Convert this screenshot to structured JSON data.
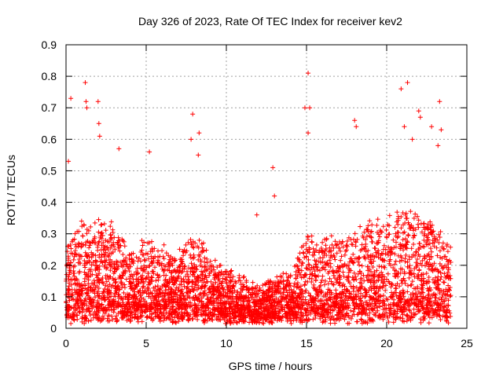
{
  "chart_data": {
    "type": "scatter",
    "title": "Day 326 of 2023, Rate Of TEC Index for receiver kev2",
    "xlabel": "GPS time / hours",
    "ylabel": "ROTI / TECUs",
    "xlim": [
      0,
      25
    ],
    "ylim": [
      0,
      0.9
    ],
    "xticks": [
      "0",
      "5",
      "10",
      "15",
      "20",
      "25"
    ],
    "yticks": [
      "0",
      "0.1",
      "0.2",
      "0.3",
      "0.4",
      "0.5",
      "0.6",
      "0.7",
      "0.8",
      "0.9"
    ],
    "grid": true,
    "marker": "plus",
    "color": "#ff0000",
    "outliers": [
      {
        "x": 0.3,
        "y": 0.73
      },
      {
        "x": 0.15,
        "y": 0.53
      },
      {
        "x": 1.2,
        "y": 0.78
      },
      {
        "x": 1.25,
        "y": 0.72
      },
      {
        "x": 1.3,
        "y": 0.7
      },
      {
        "x": 2.0,
        "y": 0.72
      },
      {
        "x": 2.05,
        "y": 0.65
      },
      {
        "x": 2.1,
        "y": 0.61
      },
      {
        "x": 3.3,
        "y": 0.57
      },
      {
        "x": 5.2,
        "y": 0.56
      },
      {
        "x": 7.9,
        "y": 0.68
      },
      {
        "x": 7.8,
        "y": 0.6
      },
      {
        "x": 8.3,
        "y": 0.62
      },
      {
        "x": 8.25,
        "y": 0.55
      },
      {
        "x": 12.9,
        "y": 0.51
      },
      {
        "x": 15.1,
        "y": 0.81
      },
      {
        "x": 14.9,
        "y": 0.7
      },
      {
        "x": 15.2,
        "y": 0.7
      },
      {
        "x": 15.1,
        "y": 0.62
      },
      {
        "x": 18.0,
        "y": 0.66
      },
      {
        "x": 18.1,
        "y": 0.64
      },
      {
        "x": 20.9,
        "y": 0.76
      },
      {
        "x": 21.3,
        "y": 0.78
      },
      {
        "x": 22.0,
        "y": 0.69
      },
      {
        "x": 22.1,
        "y": 0.67
      },
      {
        "x": 23.3,
        "y": 0.72
      },
      {
        "x": 23.4,
        "y": 0.63
      },
      {
        "x": 21.1,
        "y": 0.64
      },
      {
        "x": 21.6,
        "y": 0.6
      },
      {
        "x": 22.8,
        "y": 0.64
      },
      {
        "x": 23.2,
        "y": 0.58
      },
      {
        "x": 11.9,
        "y": 0.36
      },
      {
        "x": 13.0,
        "y": 0.42
      }
    ],
    "density_profile": [
      {
        "x": 0,
        "base": 0.06,
        "spread": 0.2
      },
      {
        "x": 1,
        "base": 0.07,
        "spread": 0.28
      },
      {
        "x": 2,
        "base": 0.07,
        "spread": 0.28
      },
      {
        "x": 3,
        "base": 0.07,
        "spread": 0.26
      },
      {
        "x": 4,
        "base": 0.06,
        "spread": 0.2
      },
      {
        "x": 5,
        "base": 0.06,
        "spread": 0.22
      },
      {
        "x": 6,
        "base": 0.06,
        "spread": 0.2
      },
      {
        "x": 7,
        "base": 0.05,
        "spread": 0.18
      },
      {
        "x": 8,
        "base": 0.06,
        "spread": 0.25
      },
      {
        "x": 9,
        "base": 0.05,
        "spread": 0.17
      },
      {
        "x": 10,
        "base": 0.04,
        "spread": 0.14
      },
      {
        "x": 11,
        "base": 0.04,
        "spread": 0.12
      },
      {
        "x": 12,
        "base": 0.03,
        "spread": 0.1
      },
      {
        "x": 13,
        "base": 0.03,
        "spread": 0.13
      },
      {
        "x": 14,
        "base": 0.04,
        "spread": 0.14
      },
      {
        "x": 15,
        "base": 0.05,
        "spread": 0.25
      },
      {
        "x": 16,
        "base": 0.06,
        "spread": 0.24
      },
      {
        "x": 17,
        "base": 0.06,
        "spread": 0.22
      },
      {
        "x": 18,
        "base": 0.06,
        "spread": 0.28
      },
      {
        "x": 19,
        "base": 0.07,
        "spread": 0.28
      },
      {
        "x": 20,
        "base": 0.07,
        "spread": 0.3
      },
      {
        "x": 21,
        "base": 0.07,
        "spread": 0.32
      },
      {
        "x": 22,
        "base": 0.07,
        "spread": 0.3
      },
      {
        "x": 23,
        "base": 0.06,
        "spread": 0.28
      },
      {
        "x": 24,
        "base": 0.05,
        "spread": 0.2
      }
    ]
  }
}
